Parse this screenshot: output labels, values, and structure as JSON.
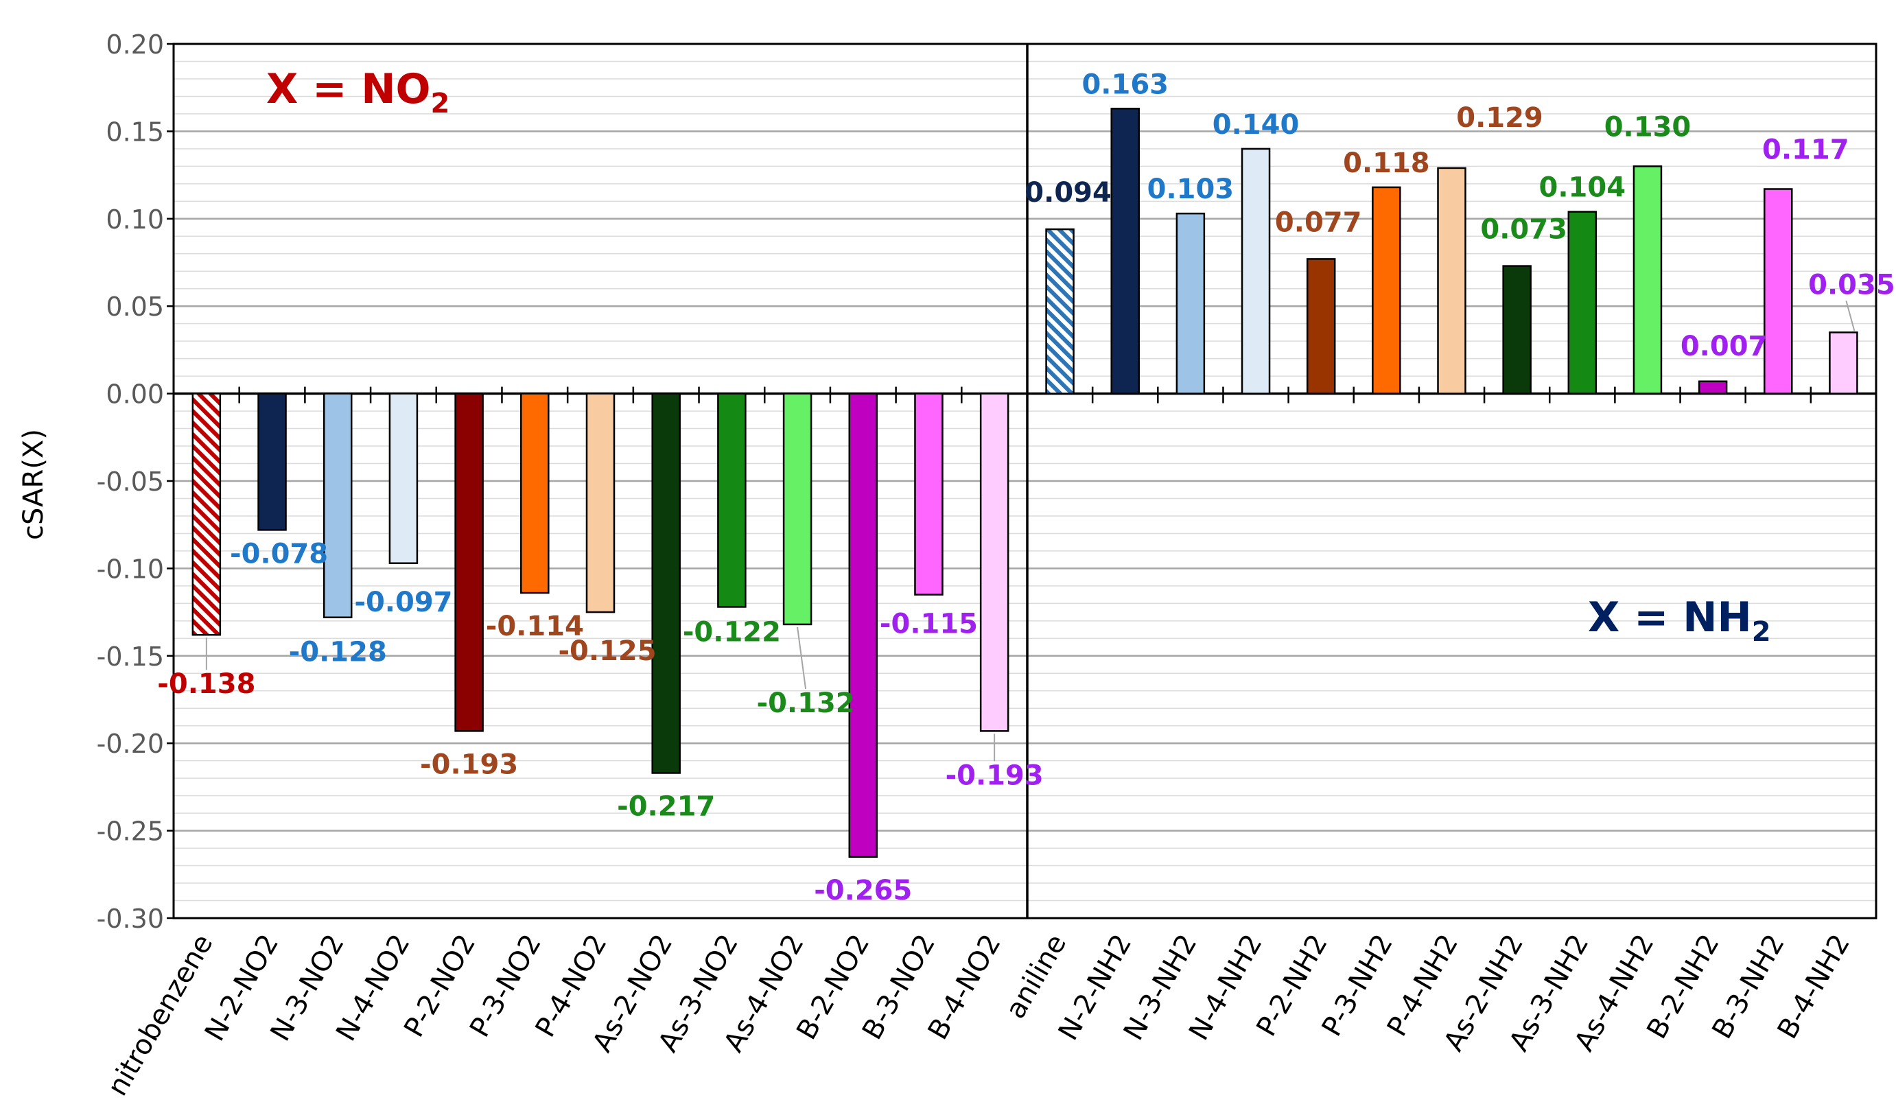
{
  "chart_data": {
    "type": "bar",
    "ylabel": "cSAR(X)",
    "ylim": [
      -0.3,
      0.2
    ],
    "ytick_step": 0.05,
    "ytick_labels": [
      "0.20",
      "0.15",
      "0.10",
      "0.05",
      "0.00",
      "-0.05",
      "-0.10",
      "-0.15",
      "-0.20",
      "-0.25",
      "-0.30"
    ],
    "grid": true,
    "panels": [
      {
        "label_text": "X = NO",
        "label_sub": "2",
        "label_color": "#c00000"
      },
      {
        "label_text": "X = NH",
        "label_sub": "2",
        "label_color": "#002060"
      }
    ],
    "categories": [
      "nitrobenzene",
      "N-2-NO2",
      "N-3-NO2",
      "N-4-NO2",
      "P-2-NO2",
      "P-3-NO2",
      "P-4-NO2",
      "As-2-NO2",
      "As-3-NO2",
      "As-4-NO2",
      "B-2-NO2",
      "B-3-NO2",
      "B-4-NO2",
      "aniline",
      "N-2-NH2",
      "N-3-NH2",
      "N-4-NH2",
      "P-2-NH2",
      "P-3-NH2",
      "P-4-NH2",
      "As-2-NH2",
      "As-3-NH2",
      "As-4-NH2",
      "B-2-NH2",
      "B-3-NH2",
      "B-4-NH2"
    ],
    "values": [
      -0.138,
      -0.078,
      -0.128,
      -0.097,
      -0.193,
      -0.114,
      -0.125,
      -0.217,
      -0.122,
      -0.132,
      -0.265,
      -0.115,
      -0.193,
      0.094,
      0.163,
      0.103,
      0.14,
      0.077,
      0.118,
      0.129,
      0.073,
      0.104,
      0.13,
      0.007,
      0.117,
      0.035
    ],
    "value_labels": [
      "-0.138",
      "-0.078",
      "-0.128",
      "-0.097",
      "-0.193",
      "-0.114",
      "-0.125",
      "-0.217",
      "-0.122",
      "-0.132",
      "-0.265",
      "-0.115",
      "-0.193",
      "0.094",
      "0.163",
      "0.103",
      "0.140",
      "0.077",
      "0.118",
      "0.129",
      "0.073",
      "0.104",
      "0.130",
      "0.007",
      "0.117",
      "0.035"
    ],
    "bar_colors": [
      "#c00000",
      "#0d2550",
      "#9dc3e6",
      "#deebf7",
      "#8b0000",
      "#ff6a00",
      "#f8cba0",
      "#0a3a0a",
      "#148a14",
      "#66f066",
      "#c000c0",
      "#ff66ff",
      "#ffccff",
      "#2e75b6",
      "#0d2550",
      "#9dc3e6",
      "#deebf7",
      "#993300",
      "#ff6a00",
      "#f8cba0",
      "#0a3a0a",
      "#148a14",
      "#66f066",
      "#c000c0",
      "#ff66ff",
      "#ffccff"
    ],
    "hatched": [
      true,
      false,
      false,
      false,
      false,
      false,
      false,
      false,
      false,
      false,
      false,
      false,
      false,
      true,
      false,
      false,
      false,
      false,
      false,
      false,
      false,
      false,
      false,
      false,
      false,
      false
    ],
    "label_colors": [
      "#c00000",
      "#1f78c8",
      "#1f78c8",
      "#1f78c8",
      "#a0461e",
      "#a0461e",
      "#a0461e",
      "#1a8a1a",
      "#1a8a1a",
      "#1a8a1a",
      "#a020f0",
      "#a020f0",
      "#a020f0",
      "#0d2550",
      "#1f78c8",
      "#1f78c8",
      "#1f78c8",
      "#a0461e",
      "#a0461e",
      "#a0461e",
      "#1a8a1a",
      "#1a8a1a",
      "#1a8a1a",
      "#a020f0",
      "#a020f0",
      "#a020f0"
    ]
  }
}
